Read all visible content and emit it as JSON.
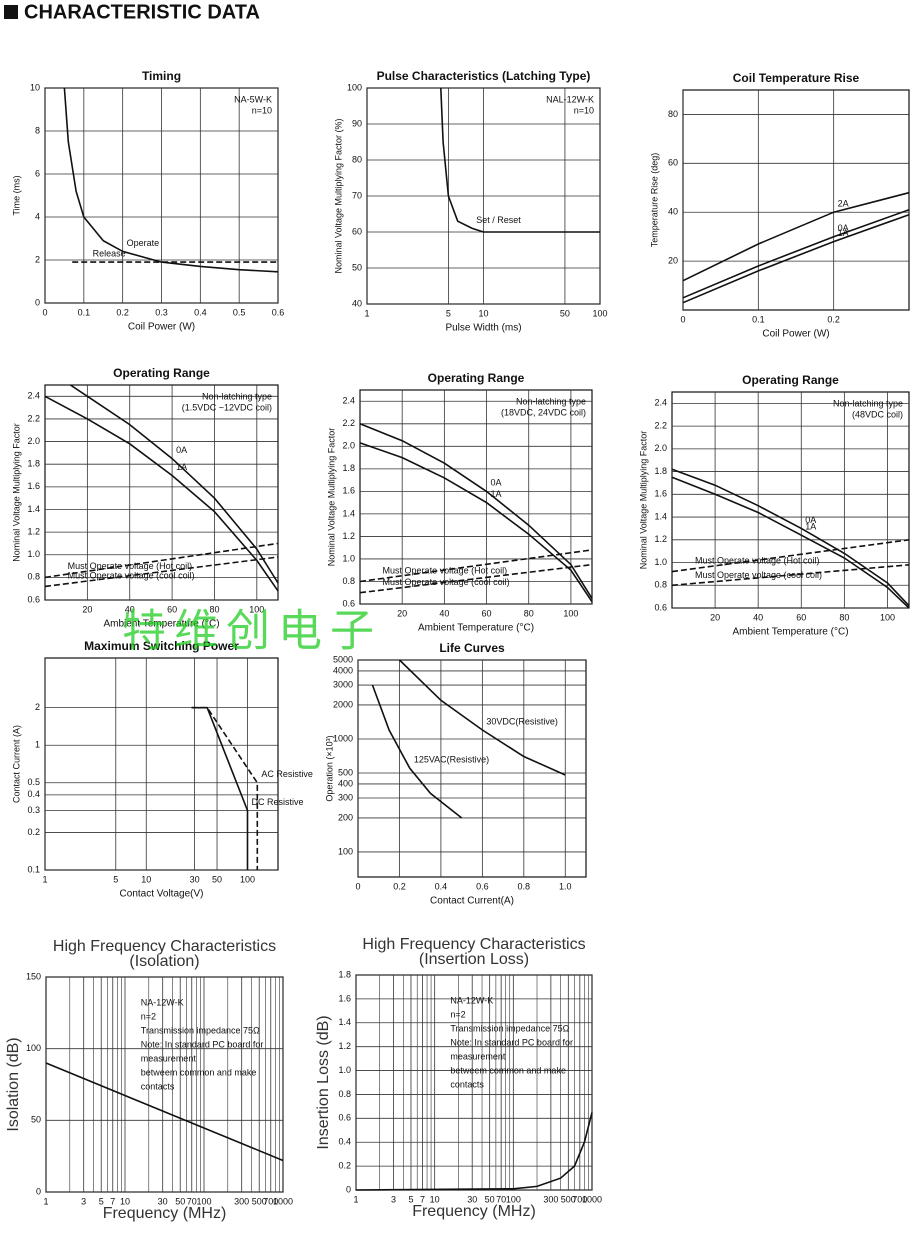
{
  "header": "CHARACTERISTIC DATA",
  "watermark": "特维创电子",
  "chart_data": [
    {
      "type": "line",
      "title": "Timing",
      "xlabel": "Coil Power (W)",
      "ylabel": "Time (ms)",
      "annotations": [
        "NA-5W-K",
        "n=10"
      ],
      "color": "#111",
      "grid": true,
      "xlim": [
        0,
        0.6
      ],
      "ylim": [
        0,
        10
      ],
      "xticks": [
        0,
        0.1,
        0.2,
        0.3,
        0.4,
        0.5,
        0.6
      ],
      "yticks": [
        0,
        2,
        4,
        6,
        8,
        10
      ],
      "series": [
        {
          "name": "Operate",
          "x": [
            0.05,
            0.06,
            0.08,
            0.1,
            0.15,
            0.2,
            0.3,
            0.4,
            0.5,
            0.6
          ],
          "values": [
            10,
            7.5,
            5.2,
            4,
            2.9,
            2.4,
            1.9,
            1.7,
            1.55,
            1.45
          ]
        },
        {
          "name": "Release",
          "dash": true,
          "x": [
            0.07,
            0.6
          ],
          "values": [
            1.9,
            1.9
          ]
        }
      ]
    },
    {
      "type": "line",
      "title": "Pulse Characteristics  (Latching Type)",
      "xlabel": "Pulse Width (ms)",
      "ylabel": "Nominal Voltage Multiplying Factor (%)",
      "annotations": [
        "NAL-12W-K",
        "n=10"
      ],
      "color": "#111",
      "grid": true,
      "xscale": "log",
      "xlim": [
        1,
        100
      ],
      "ylim": [
        40,
        100
      ],
      "xticks": [
        1,
        5,
        10,
        50,
        100
      ],
      "yticks": [
        40,
        50,
        60,
        70,
        80,
        90,
        100
      ],
      "series": [
        {
          "name": "Set / Reset",
          "x": [
            4.3,
            4.5,
            5,
            6,
            8,
            10,
            20,
            50,
            100
          ],
          "values": [
            100,
            85,
            70,
            63,
            61,
            60,
            60,
            60,
            60
          ]
        }
      ]
    },
    {
      "type": "line",
      "title": "Coil Temperature Rise",
      "xlabel": "Coil Power (W)",
      "ylabel": "Temperature Rise (deg)",
      "color": "#111",
      "grid": true,
      "xlim": [
        0,
        0.3
      ],
      "ylim": [
        0,
        90
      ],
      "xticks": [
        0,
        0.1,
        0.2
      ],
      "yticks": [
        20,
        40,
        60,
        80
      ],
      "series": [
        {
          "name": "2A",
          "x": [
            0,
            0.1,
            0.2,
            0.3
          ],
          "values": [
            12,
            27,
            40,
            48
          ]
        },
        {
          "name": "0A",
          "x": [
            0,
            0.1,
            0.2,
            0.3
          ],
          "values": [
            5,
            18,
            30,
            41
          ]
        },
        {
          "name": "1A",
          "x": [
            0,
            0.1,
            0.2,
            0.3
          ],
          "values": [
            3,
            16,
            28,
            39
          ]
        }
      ]
    },
    {
      "type": "line",
      "title": "Operating Range",
      "xlabel": "Ambient Temperature (°C)",
      "ylabel": "Nominal Voltage Multiplying Factor",
      "annotations": [
        "Non-latching type",
        "(1.5VDC ~12VDC coil)"
      ],
      "color": "#111",
      "grid": true,
      "xlim": [
        0,
        110
      ],
      "ylim": [
        0.6,
        2.5
      ],
      "xticks": [
        20,
        40,
        60,
        80,
        100
      ],
      "yticks": [
        0.6,
        0.8,
        {
          "value": 1,
          "label": "1.0"
        },
        1.2,
        1.4,
        1.6,
        1.8,
        {
          "value": 2,
          "label": "2.0"
        },
        2.2,
        2.4
      ],
      "series": [
        {
          "name": "0A",
          "x": [
            12,
            20,
            40,
            60,
            80,
            100,
            110
          ],
          "values": [
            2.5,
            2.4,
            2.15,
            1.85,
            1.5,
            1.05,
            0.75
          ]
        },
        {
          "name": "1A",
          "x": [
            0,
            20,
            40,
            60,
            80,
            100,
            110
          ],
          "values": [
            2.4,
            2.2,
            1.98,
            1.7,
            1.38,
            0.95,
            0.68
          ]
        },
        {
          "name": "Must Operate voltage (Hot coil)",
          "dash": true,
          "x": [
            0,
            110
          ],
          "values": [
            0.8,
            1.1
          ]
        },
        {
          "name": "Must Operate voltage (cool coil)",
          "dash": true,
          "x": [
            0,
            110
          ],
          "values": [
            0.72,
            0.98
          ]
        }
      ]
    },
    {
      "type": "line",
      "title": "Operating Range",
      "xlabel": "Ambient Temperature (°C)",
      "ylabel": "Nominal Voltage Multiplying Factor",
      "annotations": [
        "Non-latching type",
        "(18VDC, 24VDC coil)"
      ],
      "color": "#111",
      "grid": true,
      "xlim": [
        0,
        110
      ],
      "ylim": [
        0.6,
        2.5
      ],
      "xticks": [
        20,
        40,
        60,
        80,
        100
      ],
      "yticks": [
        0.6,
        0.8,
        {
          "value": 1,
          "label": "1.0"
        },
        1.2,
        1.4,
        1.6,
        1.8,
        {
          "value": 2,
          "label": "2.0"
        },
        2.2,
        2.4
      ],
      "series": [
        {
          "name": "0A",
          "x": [
            0,
            20,
            40,
            60,
            80,
            100,
            110
          ],
          "values": [
            2.2,
            2.05,
            1.85,
            1.6,
            1.3,
            0.95,
            0.65
          ]
        },
        {
          "name": "1A",
          "x": [
            0,
            20,
            40,
            60,
            80,
            100,
            110
          ],
          "values": [
            2.03,
            1.9,
            1.72,
            1.5,
            1.22,
            0.9,
            0.62
          ]
        },
        {
          "name": "Must Operate voltage (Hot coil)",
          "dash": true,
          "x": [
            0,
            110
          ],
          "values": [
            0.8,
            1.08
          ]
        },
        {
          "name": "Must Operate voltage (cool coil)",
          "dash": true,
          "x": [
            0,
            110
          ],
          "values": [
            0.7,
            0.95
          ]
        }
      ]
    },
    {
      "type": "line",
      "title": "Operating Range",
      "xlabel": "Ambient Temperature (°C)",
      "ylabel": "Nominal Voltage Multiplying Factor",
      "annotations": [
        "Non-latching type",
        "(48VDC coil)"
      ],
      "color": "#111",
      "grid": true,
      "xlim": [
        0,
        110
      ],
      "ylim": [
        0.6,
        2.5
      ],
      "xticks": [
        20,
        40,
        60,
        80,
        100
      ],
      "yticks": [
        0.6,
        0.8,
        {
          "value": 1,
          "label": "1.0"
        },
        1.2,
        1.4,
        1.6,
        1.8,
        {
          "value": 2,
          "label": "2.0"
        },
        2.2,
        2.4
      ],
      "series": [
        {
          "name": "0A",
          "x": [
            0,
            20,
            40,
            60,
            80,
            100,
            110
          ],
          "values": [
            1.82,
            1.68,
            1.5,
            1.3,
            1.08,
            0.82,
            0.62
          ]
        },
        {
          "name": "1A",
          "x": [
            0,
            20,
            40,
            60,
            80,
            100,
            110
          ],
          "values": [
            1.75,
            1.6,
            1.44,
            1.24,
            1.04,
            0.78,
            0.6
          ]
        },
        {
          "name": "Must Operate voltage (Hot coil)",
          "dash": true,
          "x": [
            0,
            110
          ],
          "values": [
            0.92,
            1.2
          ]
        },
        {
          "name": "Must Operate voltage (cool coil)",
          "dash": true,
          "x": [
            0,
            110
          ],
          "values": [
            0.8,
            0.98
          ]
        }
      ]
    },
    {
      "type": "line",
      "title": "Maximum Switching Power",
      "xlabel": "Contact Voltage(V)",
      "ylabel": "Contact Current (A)",
      "color": "#111",
      "grid": true,
      "xscale": "log",
      "yscale": "log",
      "xlim": [
        1,
        200
      ],
      "ylim": [
        0.1,
        5
      ],
      "xticks": [
        1,
        5,
        10,
        30,
        50,
        100
      ],
      "yticks": [
        0.1,
        0.2,
        0.3,
        0.4,
        0.5,
        1,
        2
      ],
      "series": [
        {
          "name": "AC Resistive",
          "dash": true,
          "x": [
            28,
            40,
            125,
            125
          ],
          "values": [
            2,
            2,
            0.5,
            0.1
          ]
        },
        {
          "name": "DC Resistive",
          "x": [
            28,
            40,
            100,
            100
          ],
          "values": [
            2,
            2,
            0.3,
            0.1
          ]
        }
      ]
    },
    {
      "type": "line",
      "title": "Life Curves",
      "xlabel": "Contact Current(A)",
      "ylabel": "Operation (×10³)",
      "color": "#111",
      "grid": true,
      "yscale": "log",
      "xlim": [
        0,
        1.1
      ],
      "ylim": [
        60,
        5000
      ],
      "xticks": [
        0,
        0.2,
        0.4,
        0.6,
        0.8,
        {
          "value": 1,
          "label": "1.0"
        }
      ],
      "yticks": [
        100,
        200,
        300,
        400,
        500,
        1000,
        2000,
        3000,
        4000,
        5000
      ],
      "series": [
        {
          "name": "30VDC(Resistive)",
          "x": [
            0.2,
            0.4,
            0.6,
            0.8,
            1
          ],
          "values": [
            5000,
            2200,
            1200,
            700,
            480
          ]
        },
        {
          "name": "125VAC(Resistive)",
          "x": [
            0.07,
            0.15,
            0.25,
            0.35,
            0.5
          ],
          "values": [
            3000,
            1200,
            550,
            330,
            200
          ]
        }
      ]
    },
    {
      "type": "line",
      "title": "High Frequency Characteristics",
      "subtitle": "(Isolation)",
      "xlabel": "Frequency (MHz)",
      "ylabel": "Isolation (dB)",
      "annotations": [
        "NA-12W-K",
        "n=2",
        "Transmission impedance 75Ω",
        "Note: In standard PC board for",
        "measurement",
        "betweem common and make",
        "contacts"
      ],
      "color": "#111",
      "grid": true,
      "xscale": "log",
      "xlim": [
        1,
        1000
      ],
      "ylim": [
        0,
        150
      ],
      "xticks": [
        1,
        3,
        5,
        7,
        10,
        30,
        50,
        70,
        100,
        300,
        500,
        700,
        1000
      ],
      "xminor": [
        2,
        4,
        6,
        8,
        9,
        20,
        40,
        60,
        80,
        90,
        200,
        400,
        600,
        800,
        900
      ],
      "yticks": [
        0,
        50,
        100,
        150
      ],
      "series": [
        {
          "x": [
            1,
            1000
          ],
          "values": [
            90,
            22
          ]
        }
      ]
    },
    {
      "type": "line",
      "title": "High Frequency Characteristics",
      "subtitle": "(Insertion Loss)",
      "xlabel": "Frequency (MHz)",
      "ylabel": "Insertion Loss (dB)",
      "annotations": [
        "NA-12W-K",
        "n=2",
        "Transmission impedance 75Ω",
        "Note: In standard PC board for",
        "measurement",
        "betweem common and make",
        "contacts"
      ],
      "color": "#111",
      "grid": true,
      "xscale": "log",
      "xlim": [
        1,
        1000
      ],
      "ylim": [
        0,
        1.8
      ],
      "xticks": [
        1,
        3,
        5,
        7,
        10,
        30,
        50,
        70,
        100,
        300,
        500,
        700,
        1000
      ],
      "xminor": [
        2,
        4,
        6,
        8,
        9,
        20,
        40,
        60,
        80,
        90,
        200,
        400,
        600,
        800,
        900
      ],
      "yticks": [
        0,
        0.2,
        0.4,
        0.6,
        0.8,
        {
          "value": 1,
          "label": "1.0"
        },
        1.2,
        1.4,
        1.6,
        1.8
      ],
      "series": [
        {
          "x": [
            1,
            100,
            200,
            400,
            600,
            800,
            1000
          ],
          "values": [
            0,
            0.01,
            0.03,
            0.1,
            0.2,
            0.4,
            0.65
          ]
        }
      ]
    }
  ]
}
